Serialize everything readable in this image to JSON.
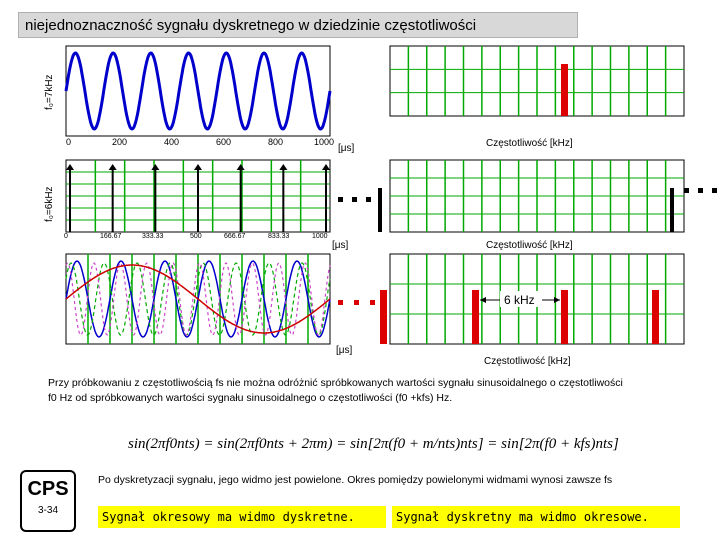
{
  "title": "niejednoznaczność sygnału dyskretnego w dziedzinie częstotliwości",
  "panels": {
    "p1": {
      "ylabel": "f₀=7kHz",
      "x_ticks": [
        "0",
        "200",
        "400",
        "600",
        "800",
        "1000"
      ],
      "x_unit": "[μs]",
      "freq_label": "Częstotliwość [kHz]"
    },
    "p2": {
      "ylabel": "f₀=6kHz",
      "x_ticks": [
        "0",
        "166.67",
        "333.33",
        "500",
        "666.67",
        "833.33",
        "1000"
      ],
      "x_unit": "[μs]",
      "freq_label": "Częstotliwość [kHz]"
    },
    "p3": {
      "x_unit": "[μs]",
      "freq_label": "Częstotliwość [kHz]",
      "marker": "6 kHz"
    }
  },
  "paragraph": {
    "line1": "Przy próbkowaniu z częstotliwością fs nie można odróżnić spróbkowanych wartości sygnału sinusoidalnego o częstotliwości",
    "line2": "f0 Hz od spróbkowanych wartości sygnału sinusoidalnego o częstotliwości (f0 +kfs) Hz."
  },
  "formula": {
    "text": "sin(2πf0nts) = sin(2πf0nts + 2πm) = sin[2π(f0 + m/nts)nts] = sin[2π(f0 + kfs)nts]"
  },
  "cps": {
    "logo": "CPS",
    "page": "3-34"
  },
  "note": "Po dyskretyzacji sygnału, jego widmo jest powielone. Okres pomiędzy powielonymi widmami wynosi zawsze fs",
  "yellow1": "Sygnał okresowy ma widmo dyskretne.",
  "yellow2": "Sygnał dyskretny ma widmo okresowe.",
  "colors": {
    "wave": "#0000cc",
    "grid": "#00aa00",
    "red": "#dd0000",
    "title_bg": "#d8d8d8",
    "highlight": "#ffff00"
  }
}
